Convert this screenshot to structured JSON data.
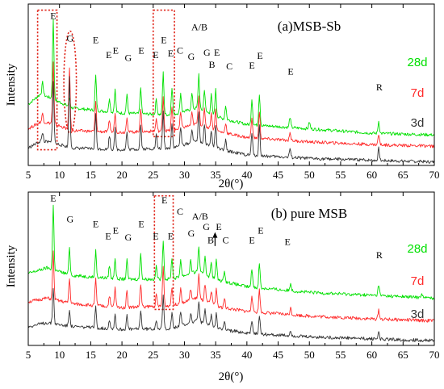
{
  "chart_data": [
    {
      "type": "line",
      "title": "(a)MSB-Sb",
      "xlabel": "2θ(°)",
      "ylabel": "Intensity",
      "xlim": [
        5,
        70
      ],
      "xticks": [
        5,
        10,
        15,
        20,
        25,
        30,
        35,
        40,
        45,
        50,
        55,
        60,
        65,
        70
      ],
      "yticks_shown": false,
      "grid": false,
      "series": [
        {
          "name": "28d",
          "color": "#00e000",
          "baseline": [
            [
              5,
              0.5
            ],
            [
              7,
              0.62
            ],
            [
              9,
              0.56
            ],
            [
              12,
              0.46
            ],
            [
              20,
              0.4
            ],
            [
              28,
              0.38
            ],
            [
              32,
              0.46
            ],
            [
              36,
              0.34
            ],
            [
              40,
              0.27
            ],
            [
              50,
              0.22
            ],
            [
              60,
              0.17
            ],
            [
              70,
              0.15
            ]
          ],
          "peaks": [
            [
              7.3,
              0.14
            ],
            [
              9.0,
              0.92
            ],
            [
              11.6,
              0.1
            ],
            [
              15.8,
              0.4
            ],
            [
              18.0,
              0.16
            ],
            [
              18.9,
              0.26
            ],
            [
              20.8,
              0.22
            ],
            [
              23.0,
              0.3
            ],
            [
              25.5,
              0.18
            ],
            [
              26.6,
              0.48
            ],
            [
              28.0,
              0.32
            ],
            [
              29.4,
              0.22
            ],
            [
              31.2,
              0.18
            ],
            [
              32.3,
              0.4
            ],
            [
              33.2,
              0.25
            ],
            [
              34.3,
              0.22
            ],
            [
              35.0,
              0.3
            ],
            [
              36.6,
              0.16
            ],
            [
              40.8,
              0.3
            ],
            [
              42.0,
              0.36
            ],
            [
              46.9,
              0.12
            ],
            [
              50.0,
              0.08
            ],
            [
              61.1,
              0.14
            ]
          ]
        },
        {
          "name": "7d",
          "color": "#ff2a2a",
          "baseline": [
            [
              5,
              0.22
            ],
            [
              7,
              0.3
            ],
            [
              9,
              0.28
            ],
            [
              12,
              0.2
            ],
            [
              20,
              0.18
            ],
            [
              28,
              0.2
            ],
            [
              32,
              0.28
            ],
            [
              36,
              0.18
            ],
            [
              40,
              0.12
            ],
            [
              50,
              0.07
            ],
            [
              60,
              0.04
            ],
            [
              70,
              0.02
            ]
          ],
          "peaks": [
            [
              7.3,
              0.1
            ],
            [
              9.0,
              0.7
            ],
            [
              11.6,
              0.72
            ],
            [
              15.8,
              0.34
            ],
            [
              18.0,
              0.14
            ],
            [
              18.9,
              0.22
            ],
            [
              20.8,
              0.18
            ],
            [
              23.0,
              0.26
            ],
            [
              25.5,
              0.14
            ],
            [
              26.6,
              0.4
            ],
            [
              28.0,
              0.26
            ],
            [
              29.4,
              0.18
            ],
            [
              31.2,
              0.14
            ],
            [
              32.3,
              0.34
            ],
            [
              33.2,
              0.2
            ],
            [
              34.3,
              0.18
            ],
            [
              35.0,
              0.24
            ],
            [
              36.6,
              0.12
            ],
            [
              40.8,
              0.24
            ],
            [
              42.0,
              0.3
            ],
            [
              46.9,
              0.1
            ],
            [
              61.1,
              0.12
            ]
          ]
        },
        {
          "name": "3d",
          "color": "#333333",
          "baseline": [
            [
              5,
              0.0
            ],
            [
              7,
              0.08
            ],
            [
              9,
              0.06
            ],
            [
              12,
              0.0
            ],
            [
              20,
              -0.02
            ],
            [
              28,
              0.0
            ],
            [
              32,
              0.08
            ],
            [
              36,
              -0.02
            ],
            [
              40,
              -0.08
            ],
            [
              50,
              -0.12
            ],
            [
              60,
              -0.14
            ],
            [
              70,
              -0.16
            ]
          ],
          "peaks": [
            [
              7.3,
              0.1
            ],
            [
              9.0,
              0.72
            ],
            [
              11.6,
              0.8
            ],
            [
              15.8,
              0.4
            ],
            [
              18.0,
              0.16
            ],
            [
              18.9,
              0.24
            ],
            [
              20.8,
              0.2
            ],
            [
              23.0,
              0.28
            ],
            [
              25.5,
              0.16
            ],
            [
              26.6,
              0.42
            ],
            [
              28.0,
              0.28
            ],
            [
              29.4,
              0.2
            ],
            [
              31.2,
              0.16
            ],
            [
              32.3,
              0.34
            ],
            [
              33.2,
              0.22
            ],
            [
              34.3,
              0.18
            ],
            [
              35.0,
              0.26
            ],
            [
              36.6,
              0.12
            ],
            [
              40.8,
              0.26
            ],
            [
              42.0,
              0.34
            ],
            [
              46.9,
              0.1
            ],
            [
              61.1,
              0.14
            ]
          ]
        }
      ],
      "peak_labels": [
        {
          "text": "E",
          "x": 9.0,
          "y": 1.48
        },
        {
          "text": "G",
          "x": 11.7,
          "y": 1.22
        },
        {
          "text": "E",
          "x": 15.8,
          "y": 1.2
        },
        {
          "text": "E",
          "x": 17.9,
          "y": 1.03
        },
        {
          "text": "E",
          "x": 19.0,
          "y": 1.08
        },
        {
          "text": "G",
          "x": 21.0,
          "y": 1.0
        },
        {
          "text": "E",
          "x": 23.1,
          "y": 1.08
        },
        {
          "text": "E",
          "x": 25.4,
          "y": 1.03
        },
        {
          "text": "E",
          "x": 26.7,
          "y": 1.2
        },
        {
          "text": "E",
          "x": 27.8,
          "y": 1.05
        },
        {
          "text": "C",
          "x": 29.3,
          "y": 1.08
        },
        {
          "text": "G",
          "x": 31.1,
          "y": 1.01
        },
        {
          "text": "A/B",
          "x": 32.4,
          "y": 1.35
        },
        {
          "text": "G",
          "x": 33.6,
          "y": 1.06
        },
        {
          "text": "B",
          "x": 34.4,
          "y": 0.92
        },
        {
          "text": "E",
          "x": 35.2,
          "y": 1.06
        },
        {
          "text": "C",
          "x": 37.2,
          "y": 0.9
        },
        {
          "text": "E",
          "x": 40.8,
          "y": 0.91
        },
        {
          "text": "E",
          "x": 42.1,
          "y": 1.02
        },
        {
          "text": "E",
          "x": 47.0,
          "y": 0.84
        },
        {
          "text": "R",
          "x": 61.2,
          "y": 0.66
        }
      ],
      "highlight_regions": [
        {
          "shape": "rect",
          "x0": 6.5,
          "x1": 9.6,
          "y0": -0.02,
          "y1": 1.58
        },
        {
          "shape": "ellipse",
          "x0": 10.7,
          "x1": 12.7,
          "y0": 0.17,
          "y1": 1.34
        },
        {
          "shape": "rect",
          "x0": 25.0,
          "x1": 28.4,
          "y0": 0.13,
          "y1": 1.58
        }
      ]
    },
    {
      "type": "line",
      "title": "(b) pure MSB",
      "xlabel": "2θ(°)",
      "ylabel": "Intensity",
      "xlim": [
        5,
        70
      ],
      "xticks": [
        5,
        10,
        15,
        20,
        25,
        30,
        35,
        40,
        45,
        50,
        55,
        60,
        65,
        70
      ],
      "yticks_shown": false,
      "grid": false,
      "series": [
        {
          "name": "28d",
          "color": "#00e000",
          "baseline": [
            [
              5,
              0.56
            ],
            [
              8,
              0.62
            ],
            [
              12,
              0.54
            ],
            [
              20,
              0.5
            ],
            [
              28,
              0.5
            ],
            [
              32,
              0.58
            ],
            [
              36,
              0.48
            ],
            [
              40,
              0.42
            ],
            [
              50,
              0.36
            ],
            [
              60,
              0.33
            ],
            [
              70,
              0.3
            ]
          ],
          "peaks": [
            [
              9.0,
              0.68
            ],
            [
              11.6,
              0.28
            ],
            [
              15.8,
              0.28
            ],
            [
              18.0,
              0.14
            ],
            [
              18.9,
              0.22
            ],
            [
              20.8,
              0.2
            ],
            [
              23.0,
              0.28
            ],
            [
              25.5,
              0.14
            ],
            [
              26.6,
              0.42
            ],
            [
              28.0,
              0.22
            ],
            [
              29.4,
              0.18
            ],
            [
              31.0,
              0.14
            ],
            [
              32.3,
              0.28
            ],
            [
              33.3,
              0.2
            ],
            [
              34.3,
              0.16
            ],
            [
              35.1,
              0.2
            ],
            [
              36.4,
              0.12
            ],
            [
              40.8,
              0.2
            ],
            [
              42.0,
              0.26
            ],
            [
              47.0,
              0.08
            ],
            [
              61.1,
              0.12
            ],
            [
              68.0,
              0.05
            ]
          ]
        },
        {
          "name": "7d",
          "color": "#ff2a2a",
          "baseline": [
            [
              5,
              0.26
            ],
            [
              8,
              0.3
            ],
            [
              12,
              0.24
            ],
            [
              20,
              0.2
            ],
            [
              28,
              0.22
            ],
            [
              32,
              0.3
            ],
            [
              36,
              0.2
            ],
            [
              40,
              0.16
            ],
            [
              50,
              0.11
            ],
            [
              60,
              0.08
            ],
            [
              70,
              0.06
            ]
          ],
          "peaks": [
            [
              9.0,
              0.5
            ],
            [
              11.6,
              0.26
            ],
            [
              15.8,
              0.28
            ],
            [
              18.0,
              0.12
            ],
            [
              18.9,
              0.2
            ],
            [
              20.8,
              0.18
            ],
            [
              23.0,
              0.24
            ],
            [
              25.5,
              0.12
            ],
            [
              26.6,
              0.42
            ],
            [
              28.0,
              0.2
            ],
            [
              29.4,
              0.16
            ],
            [
              31.0,
              0.12
            ],
            [
              32.3,
              0.26
            ],
            [
              33.3,
              0.18
            ],
            [
              34.3,
              0.14
            ],
            [
              35.1,
              0.18
            ],
            [
              36.4,
              0.1
            ],
            [
              40.8,
              0.18
            ],
            [
              42.0,
              0.24
            ],
            [
              47.0,
              0.07
            ],
            [
              61.1,
              0.1
            ]
          ]
        },
        {
          "name": "3d",
          "color": "#333333",
          "baseline": [
            [
              5,
              0.0
            ],
            [
              8,
              0.04
            ],
            [
              12,
              0.0
            ],
            [
              20,
              -0.03
            ],
            [
              28,
              -0.02
            ],
            [
              32,
              0.06
            ],
            [
              36,
              -0.03
            ],
            [
              40,
              -0.07
            ],
            [
              50,
              -0.11
            ],
            [
              60,
              -0.13
            ],
            [
              70,
              -0.15
            ]
          ],
          "peaks": [
            [
              9.0,
              0.38
            ],
            [
              11.6,
              0.18
            ],
            [
              15.8,
              0.22
            ],
            [
              18.0,
              0.1
            ],
            [
              18.9,
              0.16
            ],
            [
              20.8,
              0.14
            ],
            [
              23.0,
              0.2
            ],
            [
              25.5,
              0.1
            ],
            [
              26.6,
              0.34
            ],
            [
              28.0,
              0.16
            ],
            [
              29.4,
              0.14
            ],
            [
              31.0,
              0.1
            ],
            [
              32.3,
              0.22
            ],
            [
              33.3,
              0.14
            ],
            [
              34.3,
              0.12
            ],
            [
              35.1,
              0.16
            ],
            [
              36.4,
              0.08
            ],
            [
              40.8,
              0.14
            ],
            [
              42.0,
              0.2
            ],
            [
              47.0,
              0.06
            ],
            [
              61.1,
              0.08
            ]
          ]
        }
      ],
      "peak_labels": [
        {
          "text": "E",
          "x": 9.0,
          "y": 1.32
        },
        {
          "text": "G",
          "x": 11.7,
          "y": 1.1
        },
        {
          "text": "E",
          "x": 15.8,
          "y": 1.05
        },
        {
          "text": "E",
          "x": 17.8,
          "y": 0.92
        },
        {
          "text": "E",
          "x": 19.0,
          "y": 0.98
        },
        {
          "text": "G",
          "x": 21.0,
          "y": 0.91
        },
        {
          "text": "E",
          "x": 23.1,
          "y": 1.05
        },
        {
          "text": "E",
          "x": 25.4,
          "y": 0.92
        },
        {
          "text": "E",
          "x": 26.8,
          "y": 1.3
        },
        {
          "text": "E",
          "x": 27.8,
          "y": 0.92
        },
        {
          "text": "C",
          "x": 29.3,
          "y": 1.18
        },
        {
          "text": "G",
          "x": 31.1,
          "y": 0.95
        },
        {
          "text": "A/B",
          "x": 32.5,
          "y": 1.13
        },
        {
          "text": "G",
          "x": 33.5,
          "y": 1.02
        },
        {
          "text": "B",
          "x": 34.2,
          "y": 0.88
        },
        {
          "text": "E",
          "x": 35.5,
          "y": 1.02
        },
        {
          "text": "C",
          "x": 36.6,
          "y": 0.88
        },
        {
          "text": "E",
          "x": 40.8,
          "y": 0.88
        },
        {
          "text": "E",
          "x": 42.2,
          "y": 0.98
        },
        {
          "text": "E",
          "x": 46.5,
          "y": 0.86
        },
        {
          "text": "R",
          "x": 61.2,
          "y": 0.72
        }
      ],
      "annotations": [
        {
          "type": "arrow",
          "direction": "up",
          "x": 34.9,
          "y0": 0.85,
          "y1": 0.98
        }
      ],
      "highlight_regions": [
        {
          "shape": "rect",
          "x0": 25.2,
          "x1": 28.2,
          "y0": 0.18,
          "y1": 1.38
        }
      ]
    }
  ]
}
